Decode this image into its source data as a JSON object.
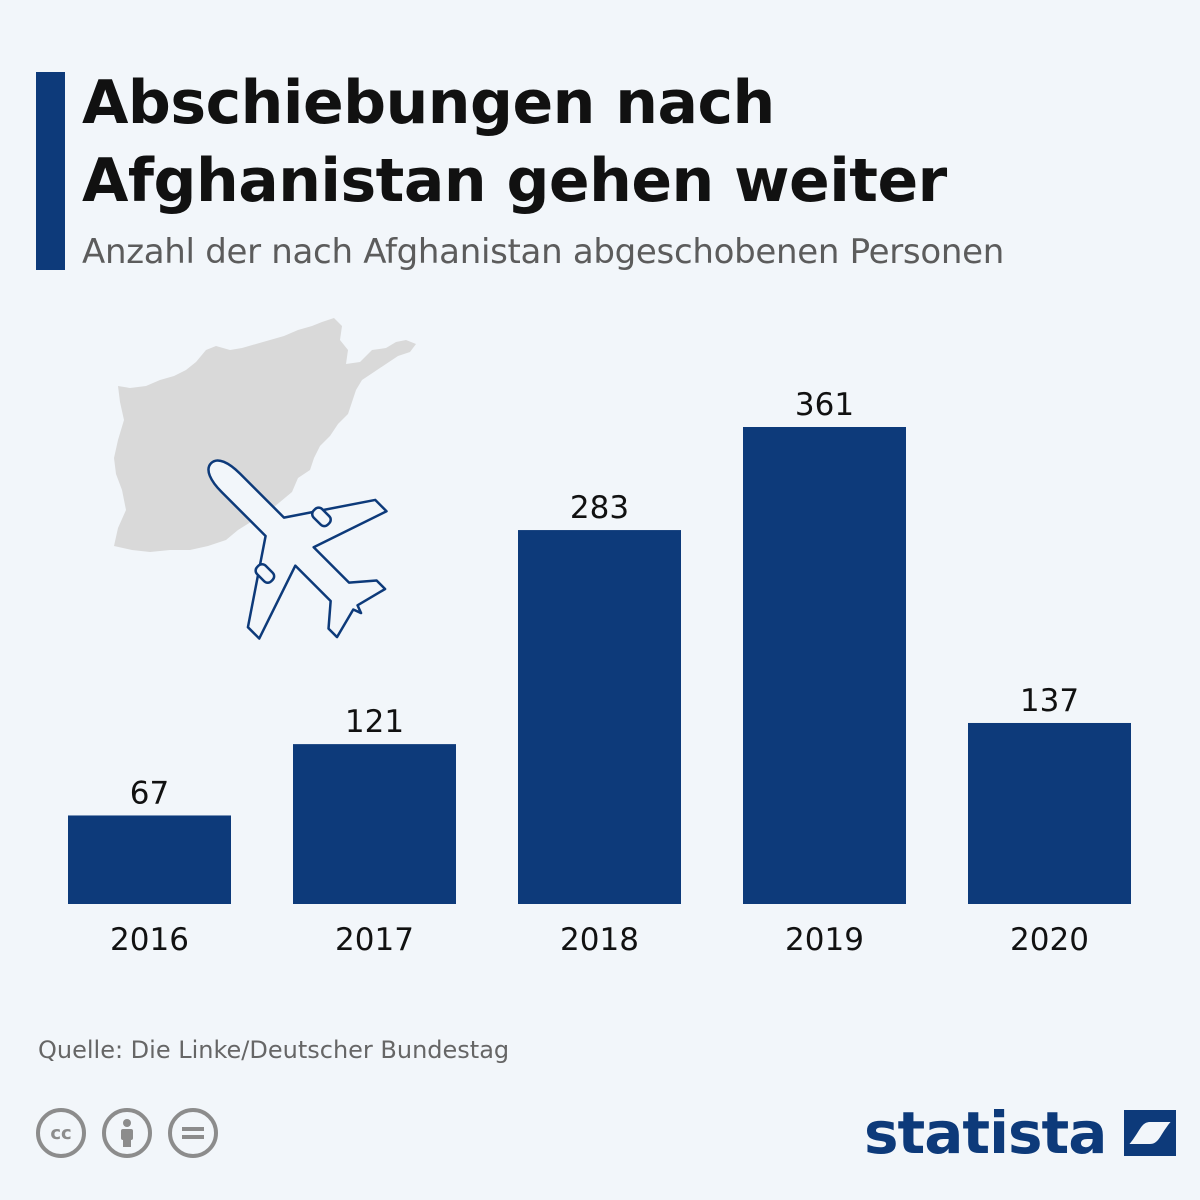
{
  "header": {
    "title_line1": "Abschiebungen nach",
    "title_line2": "Afghanistan gehen weiter",
    "subtitle": "Anzahl der nach Afghanistan abgeschobenen Personen"
  },
  "chart_data": {
    "type": "bar",
    "categories": [
      "2016",
      "2017",
      "2018",
      "2019",
      "2020"
    ],
    "values": [
      67,
      121,
      283,
      361,
      137
    ],
    "title": "Abschiebungen nach Afghanistan gehen weiter",
    "subtitle": "Anzahl der nach Afghanistan abgeschobenen Personen",
    "ylim": [
      0,
      361
    ],
    "grid": false,
    "legend": "none",
    "bar_color": "#0d3a7a"
  },
  "illustration": {
    "map": "afghanistan-map-icon",
    "plane": "airplane-icon",
    "map_color": "#d9d9d9",
    "plane_color": "#0d3a7a"
  },
  "footer": {
    "source": "Quelle: Die Linke/Deutscher Bundestag",
    "license_icons": [
      "cc-icon",
      "by-icon",
      "nd-icon"
    ],
    "logo_text": "statista"
  }
}
